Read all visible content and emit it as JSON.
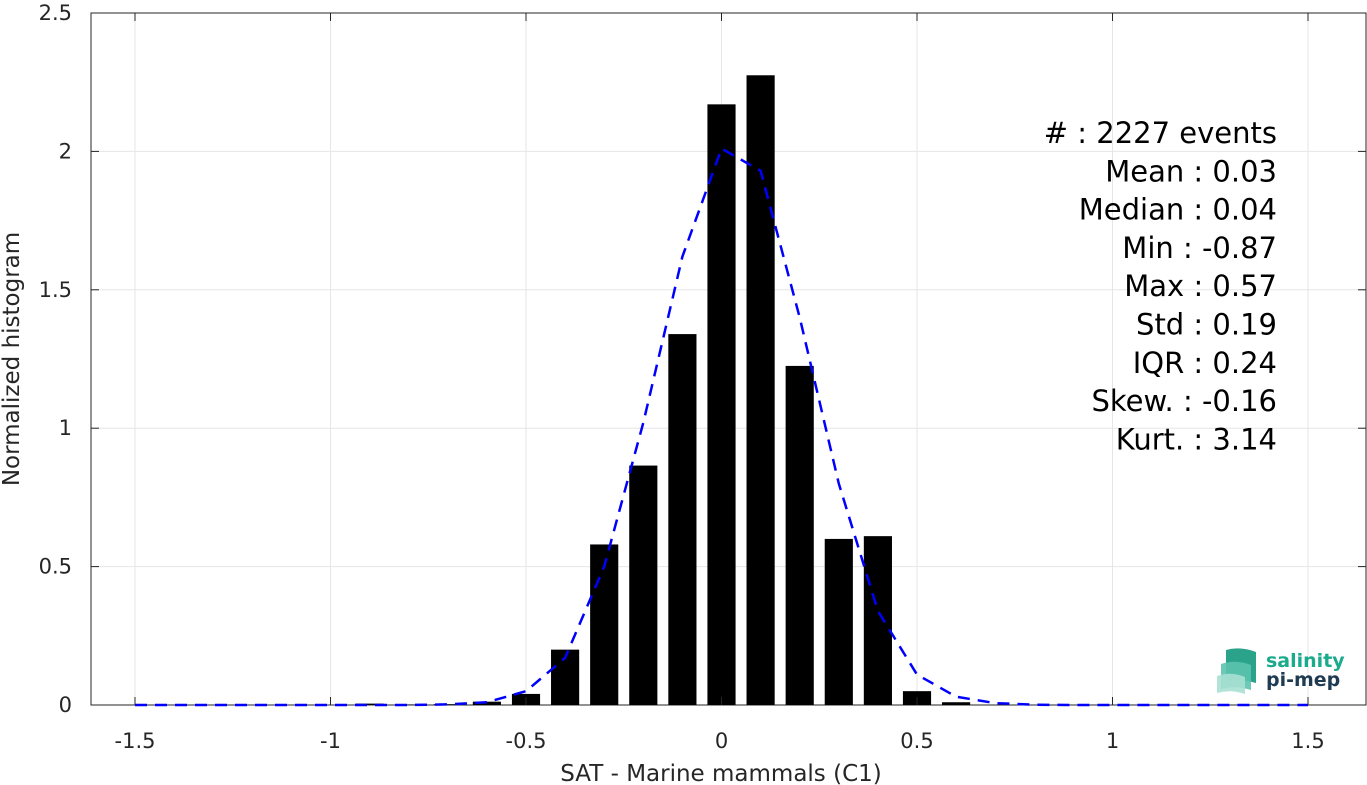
{
  "chart_data": {
    "type": "bar",
    "xlabel": "SAT - Marine mammals (C1)",
    "ylabel": "Normalized histogram",
    "xlim": [
      -1.5,
      1.5
    ],
    "ylim": [
      0,
      2.5
    ],
    "grid": true,
    "xticks": [
      -1.5,
      -1,
      -0.5,
      0,
      0.5,
      1,
      1.5
    ],
    "xtick_labels": [
      "-1.5",
      "-1",
      "-0.5",
      "0",
      "0.5",
      "1",
      "1.5"
    ],
    "yticks": [
      0,
      0.5,
      1,
      1.5,
      2,
      2.5
    ],
    "ytick_labels": [
      "0",
      "0.5",
      "1",
      "1.5",
      "2",
      "2.5"
    ],
    "bar_width": 0.072,
    "bars": {
      "x": [
        -0.9,
        -0.8,
        -0.7,
        -0.6,
        -0.5,
        -0.4,
        -0.3,
        -0.2,
        -0.1,
        0.0,
        0.1,
        0.2,
        0.3,
        0.4,
        0.5,
        0.6
      ],
      "values": [
        0.005,
        0.002,
        0.003,
        0.012,
        0.04,
        0.2,
        0.58,
        0.865,
        1.34,
        2.17,
        2.275,
        1.225,
        0.6,
        0.61,
        0.05,
        0.01
      ],
      "color": "#000000"
    },
    "fit_line": {
      "style": "dashed",
      "color": "#0000ff",
      "x": [
        -1.5,
        -1.4,
        -1.3,
        -1.2,
        -1.1,
        -1.0,
        -0.9,
        -0.8,
        -0.7,
        -0.6,
        -0.5,
        -0.4,
        -0.3,
        -0.2,
        -0.1,
        0.0,
        0.1,
        0.2,
        0.3,
        0.4,
        0.5,
        0.6,
        0.7,
        0.8,
        0.9,
        1.0,
        1.1,
        1.2,
        1.3,
        1.4,
        1.5
      ],
      "y": [
        0,
        0,
        0,
        0,
        0,
        0,
        0,
        0,
        0.002,
        0.01,
        0.05,
        0.17,
        0.5,
        1.02,
        1.62,
        2.01,
        1.93,
        1.4,
        0.8,
        0.34,
        0.11,
        0.03,
        0.007,
        0.001,
        0,
        0,
        0,
        0,
        0,
        0,
        0
      ]
    },
    "stats": [
      {
        "label": "#  : 2227 events"
      },
      {
        "label": "Mean : 0.03"
      },
      {
        "label": "Median : 0.04"
      },
      {
        "label": "Min : -0.87"
      },
      {
        "label": "Max : 0.57"
      },
      {
        "label": "Std : 0.19"
      },
      {
        "label": "IQR : 0.24"
      },
      {
        "label": "Skew. : -0.16"
      },
      {
        "label": "Kurt. : 3.14"
      }
    ]
  },
  "logo": {
    "line1": "salinity",
    "line2": "pi-mep",
    "color1": "#1aaa8c",
    "color2": "#1f3b52",
    "icon": "wave-stack-icon"
  }
}
